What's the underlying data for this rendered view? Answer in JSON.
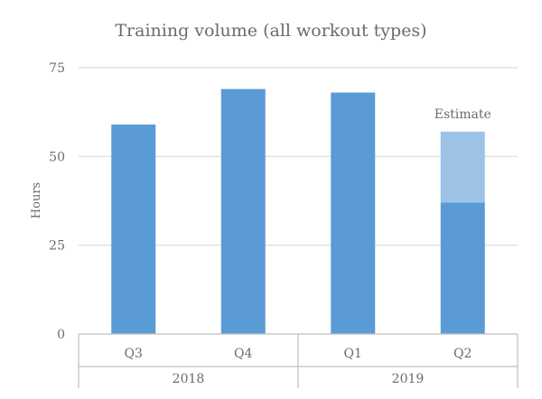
{
  "chart_data": {
    "type": "bar",
    "title": "Training volume (all workout types)",
    "ylabel": "Hours",
    "xlabel": "",
    "ylim": [
      0,
      75
    ],
    "yticks": [
      0,
      25,
      50,
      75
    ],
    "grid": true,
    "categories": [
      "Q3",
      "Q4",
      "Q1",
      "Q2"
    ],
    "groups": [
      {
        "label": "2018",
        "categories": [
          "Q3",
          "Q4"
        ]
      },
      {
        "label": "2019",
        "categories": [
          "Q1",
          "Q2"
        ]
      }
    ],
    "values": [
      59,
      69,
      68,
      37
    ],
    "estimate_values": [
      0,
      0,
      0,
      20
    ],
    "annotation": "Estimate",
    "colors": {
      "bar": "#5b9bd5",
      "estimate": "#9dc3e6",
      "grid": "#d9d9d9",
      "axis": "#bfbfbf",
      "text": "#6b6b6b"
    }
  }
}
